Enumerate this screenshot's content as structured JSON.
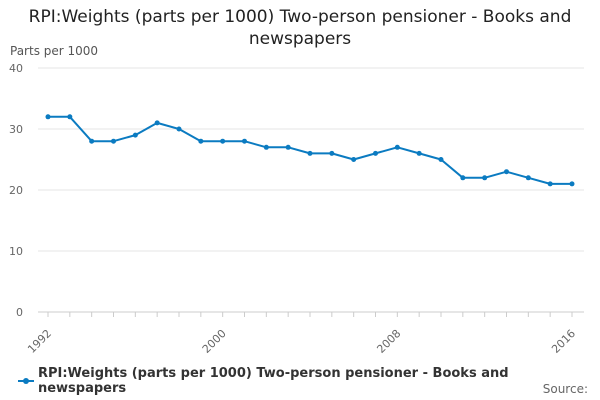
{
  "chart_data": {
    "type": "line",
    "title": "RPI:Weights (parts per 1000) Two-person pensioner - Books and newspapers",
    "ylabel": "Parts per 1000",
    "xlabel": "",
    "ylim": [
      0,
      40
    ],
    "yticks": [
      "0",
      "10",
      "20",
      "30",
      "40"
    ],
    "xlim": [
      1992,
      2016
    ],
    "xticks": [
      "1992",
      "2000",
      "2008",
      "2016"
    ],
    "x": [
      1992,
      1993,
      1994,
      1995,
      1996,
      1997,
      1998,
      1999,
      2000,
      2001,
      2002,
      2003,
      2004,
      2005,
      2006,
      2007,
      2008,
      2009,
      2010,
      2011,
      2012,
      2013,
      2014,
      2015,
      2016
    ],
    "series": [
      {
        "name": "RPI:Weights (parts per 1000) Two-person pensioner - Books and newspapers",
        "values": [
          32,
          32,
          28,
          28,
          29,
          31,
          30,
          28,
          28,
          28,
          27,
          27,
          26,
          26,
          25,
          26,
          27,
          26,
          25,
          22,
          22,
          23,
          22,
          21,
          21
        ],
        "color": "#0b7bc1"
      }
    ],
    "grid": "horizontal",
    "legend_position": "bottom-left",
    "source_label": "Source:"
  }
}
